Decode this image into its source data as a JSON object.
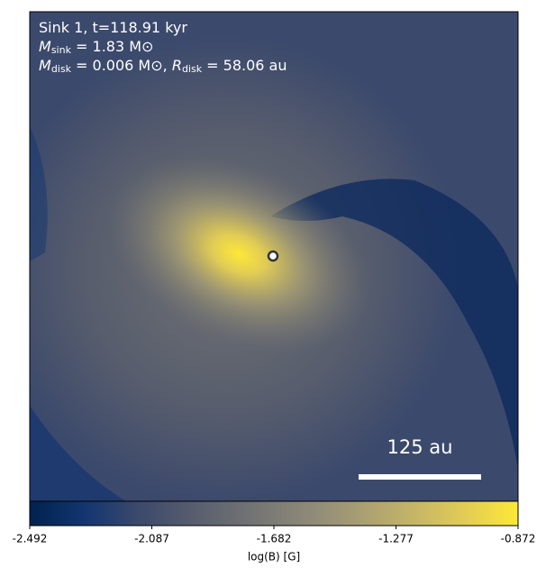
{
  "chart_data": {
    "type": "image",
    "annotations": [
      {
        "text": "Sink 1, t=118.91 kyr"
      },
      {
        "symbol": "M",
        "subscript": "sink",
        "text": " = 1.83 M⊙"
      },
      {
        "symbol": "M",
        "subscript": "disk",
        "text": " = 0.006 M⊙, ",
        "symbol2": "R",
        "subscript2": "disk",
        "text2": " = 58.06 au"
      }
    ],
    "scale_bar": "125 au",
    "colorbar": {
      "label": "log(B) [G]",
      "lim": [
        -2.492,
        -0.872
      ],
      "ticks": [
        -2.492,
        -2.087,
        -1.682,
        -1.277,
        -0.872
      ],
      "colors": [
        "#00224e",
        "#123570",
        "#3b496c",
        "#575d6d",
        "#707173",
        "#8a8678",
        "#a59c74",
        "#c3b369",
        "#e1cc55",
        "#fee838"
      ]
    }
  }
}
